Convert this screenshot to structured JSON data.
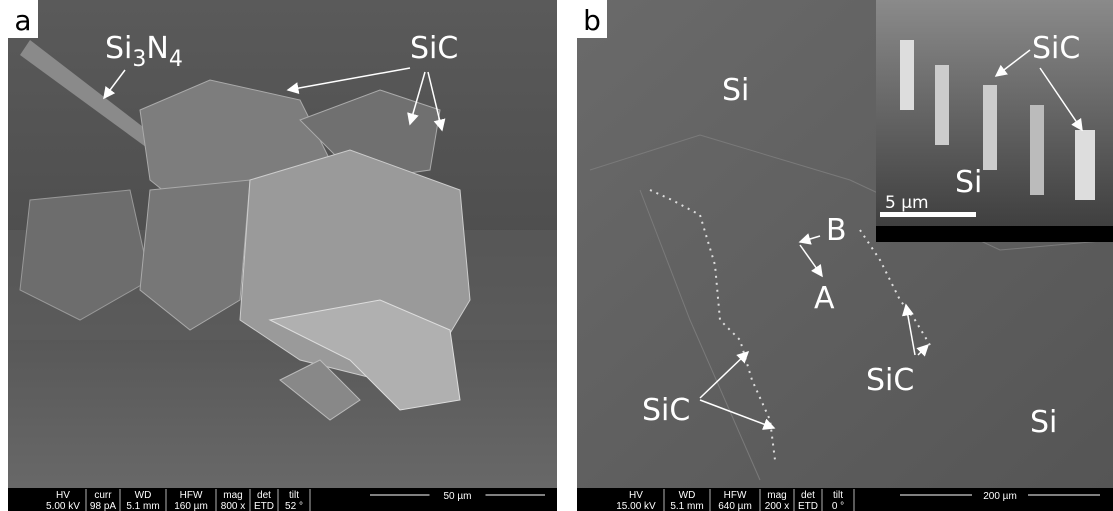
{
  "panels": [
    {
      "letter": "a",
      "labels": {
        "si3n4": [
          "Si",
          "3",
          "N",
          "4"
        ],
        "sic": "SiC"
      },
      "databar": {
        "headers": [
          "HV",
          "curr",
          "WD",
          "HFW",
          "mag",
          "det",
          "tilt"
        ],
        "values": [
          "5.00 kV",
          "98 pA",
          "5.1 mm",
          "160 µm",
          "800 x",
          "ETD",
          "52 °"
        ],
        "scale": "50 µm"
      }
    },
    {
      "letter": "b",
      "labels": {
        "si_top": "Si",
        "b": "B",
        "a": "A",
        "sic_left": "SiC",
        "sic_right": "SiC",
        "si_bottom": "Si"
      },
      "inset": {
        "sic": "SiC",
        "si": "Si",
        "scale": "5 µm"
      },
      "databar": {
        "headers": [
          "HV",
          "WD",
          "HFW",
          "mag",
          "det",
          "tilt"
        ],
        "values": [
          "15.00 kV",
          "5.1 mm",
          "640 µm",
          "200 x",
          "ETD",
          "0 °"
        ],
        "scale": "200 µm"
      }
    }
  ]
}
